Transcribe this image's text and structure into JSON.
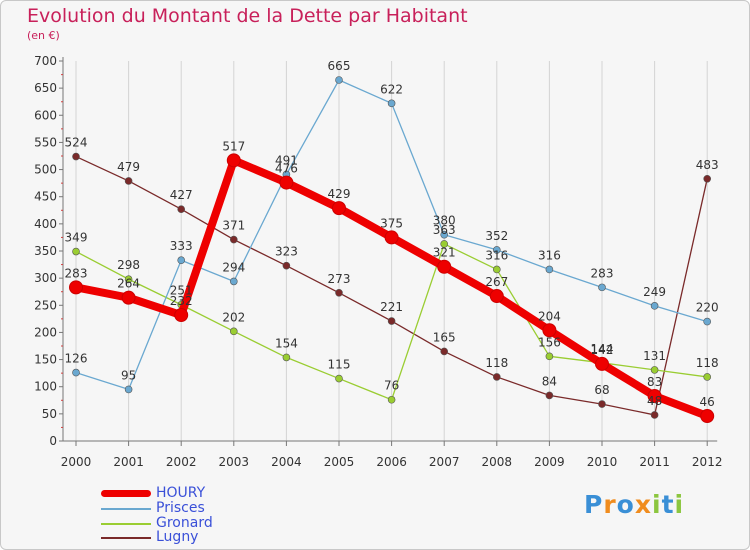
{
  "chart_data": {
    "type": "line",
    "title": "Evolution du Montant de la Dette par Habitant",
    "subtitle": "(en €)",
    "x": [
      "2000",
      "2001",
      "2002",
      "2003",
      "2004",
      "2005",
      "2006",
      "2007",
      "2008",
      "2009",
      "2010",
      "2011",
      "2012"
    ],
    "ylim": [
      0,
      700
    ],
    "yticks": [
      "0",
      "50",
      "100",
      "150",
      "200",
      "250",
      "300",
      "350",
      "400",
      "450",
      "500",
      "550",
      "600",
      "650",
      "700"
    ],
    "series": [
      {
        "name": "HOURY",
        "color": "#ee0000",
        "values": [
          283,
          264,
          232,
          517,
          476,
          429,
          375,
          321,
          267,
          204,
          142,
          83,
          46
        ],
        "labels": [
          "283",
          "264",
          "232",
          "517",
          "476",
          "429",
          "375",
          "321",
          "267",
          "204",
          "142",
          "83",
          "46"
        ]
      },
      {
        "name": "Prisces",
        "color": "#6aa8d0",
        "values": [
          126,
          95,
          333,
          294,
          491,
          665,
          622,
          380,
          352,
          316,
          283,
          249,
          220
        ],
        "labels": [
          "126",
          "95",
          "333",
          "294",
          "491",
          "665",
          "622",
          "380",
          "352",
          "316",
          "283",
          "249",
          "220"
        ]
      },
      {
        "name": "Gronard",
        "color": "#9acd32",
        "values": [
          349,
          298,
          251,
          202,
          154,
          115,
          76,
          363,
          316,
          156,
          144,
          131,
          118
        ],
        "labels": [
          "349",
          "298",
          "251",
          "202",
          "154",
          "115",
          "76",
          "363",
          "316",
          "156",
          "144",
          "131",
          "118"
        ]
      },
      {
        "name": "Lugny",
        "color": "#7a2a2a",
        "values": [
          524,
          479,
          427,
          371,
          323,
          273,
          221,
          165,
          118,
          84,
          68,
          48,
          483
        ],
        "labels": [
          "524",
          "479",
          "427",
          "371",
          "323",
          "273",
          "221",
          "165",
          "118",
          "84",
          "68",
          "48",
          "483"
        ]
      }
    ]
  },
  "logo": {
    "text": "Proxiti",
    "letters": [
      "P",
      "r",
      "o",
      "x",
      "i",
      "t",
      "i"
    ],
    "colors": [
      "#3a8fd6",
      "#f08c1e",
      "#3a8fd6",
      "#f08c1e",
      "#8cc63f",
      "#3a8fd6",
      "#8cc63f"
    ]
  }
}
